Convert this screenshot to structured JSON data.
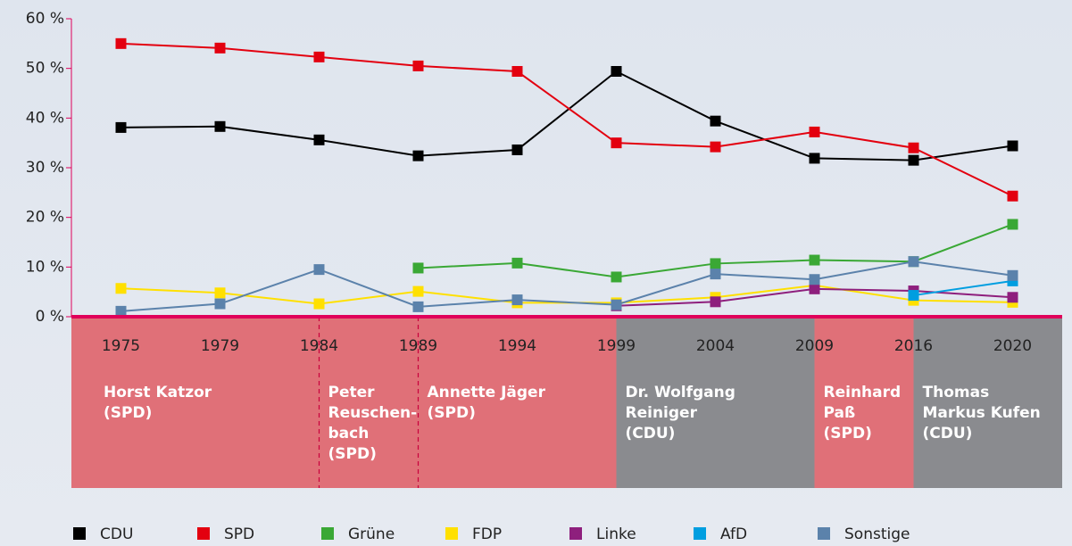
{
  "chart_data": {
    "type": "line",
    "categories": [
      "1975",
      "1979",
      "1984",
      "1989",
      "1994",
      "1999",
      "2004",
      "2009",
      "2016",
      "2020"
    ],
    "series": [
      {
        "name": "CDU",
        "color": "#000000",
        "values": [
          38.1,
          38.3,
          35.6,
          32.4,
          33.6,
          49.4,
          39.4,
          31.9,
          31.5,
          34.4
        ]
      },
      {
        "name": "SPD",
        "color": "#e3000f",
        "values": [
          55.0,
          54.1,
          52.3,
          50.5,
          49.4,
          35.0,
          34.2,
          37.2,
          34.0,
          24.3
        ]
      },
      {
        "name": "Grüne",
        "color": "#3aa835",
        "values": [
          null,
          null,
          null,
          9.8,
          10.8,
          8.0,
          10.7,
          11.4,
          11.1,
          18.6
        ]
      },
      {
        "name": "FDP",
        "color": "#ffe000",
        "values": [
          5.7,
          4.8,
          2.6,
          5.1,
          2.8,
          2.8,
          3.9,
          6.3,
          3.3,
          2.9
        ]
      },
      {
        "name": "Linke",
        "color": "#8e1f7d",
        "values": [
          null,
          null,
          null,
          null,
          null,
          2.2,
          3.0,
          5.6,
          5.2,
          3.9
        ]
      },
      {
        "name": "AfD",
        "color": "#009ee0",
        "values": [
          null,
          null,
          null,
          null,
          null,
          null,
          null,
          null,
          4.3,
          7.2
        ]
      },
      {
        "name": "Sonstige",
        "color": "#5b82ab",
        "values": [
          1.1,
          2.6,
          9.5,
          2.0,
          3.4,
          2.4,
          8.6,
          7.5,
          11.1,
          8.3
        ]
      }
    ],
    "ylim": [
      0,
      60
    ],
    "yticks": [
      {
        "value": 0,
        "label": "0 %"
      },
      {
        "value": 10,
        "label": "10 %"
      },
      {
        "value": 20,
        "label": "20 %"
      },
      {
        "value": 30,
        "label": "30 %"
      },
      {
        "value": 40,
        "label": "40 %"
      },
      {
        "value": 50,
        "label": "50 %"
      },
      {
        "value": 60,
        "label": "60 %"
      }
    ],
    "mayors": [
      {
        "from": "1975",
        "color": "#e07078",
        "lines": [
          "Horst Katzor",
          "(SPD)"
        ]
      },
      {
        "from": "1984",
        "color": "#e07078",
        "lines": [
          "Peter",
          "Reuschen-",
          "bach",
          "(SPD)"
        ]
      },
      {
        "from": "1989",
        "color": "#e07078",
        "lines": [
          "Annette Jäger",
          "(SPD)"
        ]
      },
      {
        "from": "1999",
        "color": "#8a8b8f",
        "lines": [
          "Dr. Wolfgang",
          "Reiniger",
          "(CDU)"
        ]
      },
      {
        "from": "2009",
        "color": "#e07078",
        "lines": [
          "Reinhard",
          "Paß",
          "(SPD)"
        ]
      },
      {
        "from": "2016",
        "color": "#8a8b8f",
        "lines": [
          "Thomas",
          "Markus Kufen",
          "(CDU)"
        ]
      }
    ]
  }
}
